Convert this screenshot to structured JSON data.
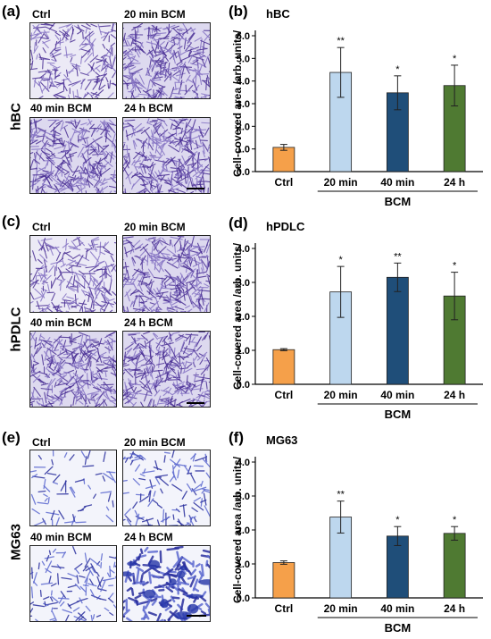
{
  "panels": [
    {
      "image_label": "(a)",
      "chart_label": "(b)",
      "cell_line": "hBC",
      "image_captions": [
        "Ctrl",
        "20 min BCM",
        "40 min BCM",
        "24 h BCM"
      ],
      "texture": "dense",
      "chart_data": {
        "type": "bar",
        "title": "hBC",
        "ylabel": "Cell-covered area /arb. units/",
        "xlabel": "BCM",
        "categories": [
          "Ctrl",
          "20 min",
          "40 min",
          "24 h"
        ],
        "values": [
          1.07,
          4.38,
          3.48,
          3.8
        ],
        "errors": [
          0.13,
          1.1,
          0.75,
          0.9
        ],
        "significance": [
          "",
          "**",
          "*",
          "*"
        ],
        "colors": [
          "#f5a04a",
          "#bdd7ee",
          "#1f4e79",
          "#4f7a32"
        ],
        "ylim": [
          0,
          6
        ],
        "yticks": [
          "0.0",
          "1.0",
          "2.0",
          "3.0",
          "4.0",
          "5.0",
          "6.0"
        ],
        "tick_values": [
          0,
          1,
          2,
          3,
          4,
          5,
          6
        ]
      }
    },
    {
      "image_label": "(c)",
      "chart_label": "(d)",
      "cell_line": "hPDLC",
      "image_captions": [
        "Ctrl",
        "20 min BCM",
        "40 min BCM",
        "24 h BCM"
      ],
      "texture": "dense",
      "chart_data": {
        "type": "bar",
        "title": "hPDLC",
        "ylabel": "Cell-covered area /arb. units/",
        "xlabel": "BCM",
        "categories": [
          "Ctrl",
          "20 min",
          "40 min",
          "24 h"
        ],
        "values": [
          1.02,
          2.72,
          3.15,
          2.6
        ],
        "errors": [
          0.03,
          0.75,
          0.42,
          0.7
        ],
        "significance": [
          "",
          "*",
          "**",
          "*"
        ],
        "colors": [
          "#f5a04a",
          "#bdd7ee",
          "#1f4e79",
          "#4f7a32"
        ],
        "ylim": [
          0,
          4
        ],
        "yticks": [
          "0.0",
          "1.0",
          "2.0",
          "3.0",
          "4.0"
        ],
        "tick_values": [
          0,
          1,
          2,
          3,
          4
        ]
      }
    },
    {
      "image_label": "(e)",
      "chart_label": "(f)",
      "cell_line": "MG63",
      "image_captions": [
        "Ctrl",
        "20 min BCM",
        "40 min BCM",
        "24 h BCM"
      ],
      "texture": "sparse",
      "chart_data": {
        "type": "bar",
        "title": "MG63",
        "ylabel": "Cell-covered area /arb. units/",
        "xlabel": "BCM",
        "categories": [
          "Ctrl",
          "20 min",
          "40 min",
          "24 h"
        ],
        "values": [
          1.04,
          2.38,
          1.82,
          1.9
        ],
        "errors": [
          0.05,
          0.47,
          0.28,
          0.2
        ],
        "significance": [
          "",
          "**",
          "*",
          "*"
        ],
        "colors": [
          "#f5a04a",
          "#bdd7ee",
          "#1f4e79",
          "#4f7a32"
        ],
        "ylim": [
          0,
          4
        ],
        "yticks": [
          "0.0",
          "1.0",
          "2.0",
          "3.0",
          "4.0"
        ],
        "tick_values": [
          0,
          1,
          2,
          3,
          4
        ]
      }
    }
  ]
}
